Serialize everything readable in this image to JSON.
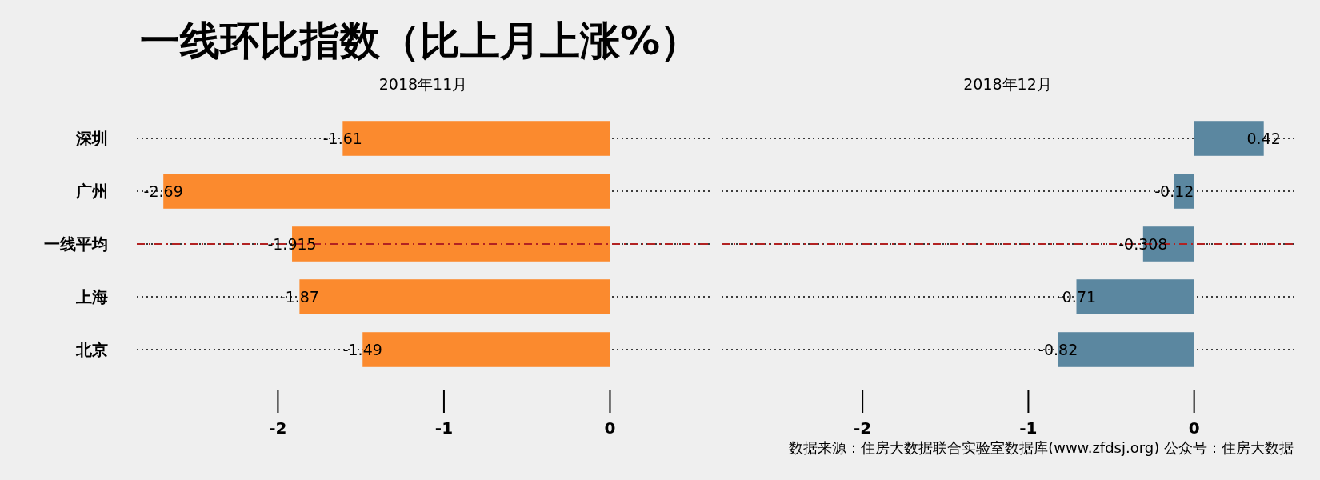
{
  "chart_data": [
    {
      "type": "bar",
      "orientation": "horizontal",
      "title": "一线环比指数（比上月上涨%）",
      "subtitle": "2018年11月",
      "categories": [
        "深圳",
        "广州",
        "一线平均",
        "上海",
        "北京"
      ],
      "series": [
        {
          "color": "#fb8a2e",
          "values": [
            -1.61,
            -2.69,
            -1.915,
            -1.87,
            -1.49
          ]
        }
      ],
      "xlim": [
        -2.85,
        0.6
      ],
      "xticks": [
        -2,
        -1,
        0
      ],
      "grid": "y",
      "line_style": "dotted",
      "data_labels": true,
      "ref_lines": [
        {
          "axis": "y",
          "value": "一线平均",
          "color": "#b22222",
          "line_style": "dashdot"
        }
      ]
    },
    {
      "type": "bar",
      "orientation": "horizontal",
      "subtitle": "2018年12月",
      "categories": [
        "深圳",
        "广州",
        "一线平均",
        "上海",
        "北京"
      ],
      "series": [
        {
          "color": "#5b87a0",
          "values": [
            0.42,
            -0.12,
            -0.308,
            -0.71,
            -0.82
          ]
        }
      ],
      "xlim": [
        -2.85,
        0.6
      ],
      "xticks": [
        -2,
        -1,
        0
      ],
      "grid": "y",
      "line_style": "dotted",
      "data_labels": true,
      "tick_labels": "x",
      "ref_lines": [
        {
          "axis": "y",
          "value": "一线平均",
          "color": "#b22222",
          "line_style": "dashdot"
        }
      ],
      "annotations": [
        "数据来源：住房大数据联合实验室数据库(www.zfdsj.org) 公众号：住房大数据"
      ]
    }
  ]
}
